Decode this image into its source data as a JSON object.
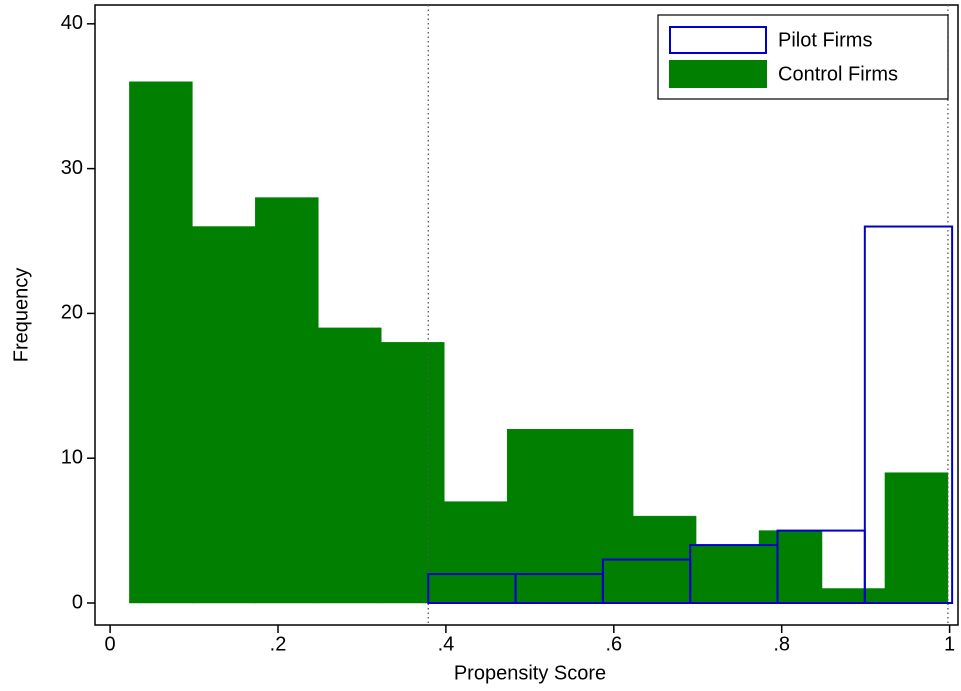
{
  "chart_data": {
    "type": "histogram",
    "x_label": "Propensity Score",
    "y_label": "Frequency",
    "xlim": [
      -0.018,
      1.01
    ],
    "ylim": [
      -1.52,
      41.3
    ],
    "xticks": [
      0,
      {
        "value": 0.2,
        "label": ".2"
      },
      {
        "value": 0.4,
        "label": ".4"
      },
      {
        "value": 0.6,
        "label": ".6"
      },
      {
        "value": 0.8,
        "label": ".8"
      },
      1
    ],
    "yticks": [
      0,
      10,
      20,
      30,
      40
    ],
    "vlines": [
      0.379,
      0.998
    ],
    "legend": "top-right",
    "series": [
      {
        "name": "Control Firms",
        "color": "#007f00",
        "style": "filled",
        "bins": [
          0.023,
          0.098,
          0.173,
          0.248,
          0.323,
          0.398,
          0.473,
          0.548,
          0.623,
          0.698,
          0.773,
          0.848,
          0.923,
          0.998
        ],
        "values": [
          36,
          26,
          28,
          19,
          18,
          7,
          12,
          12,
          6,
          4,
          5,
          1,
          9
        ]
      },
      {
        "name": "Pilot Firms",
        "color": "#0000cc",
        "style": "outline",
        "bins": [
          0.379,
          0.483,
          0.587,
          0.691,
          0.795,
          0.899,
          1.003
        ],
        "values": [
          2,
          2,
          3,
          4,
          5,
          26
        ]
      }
    ]
  }
}
